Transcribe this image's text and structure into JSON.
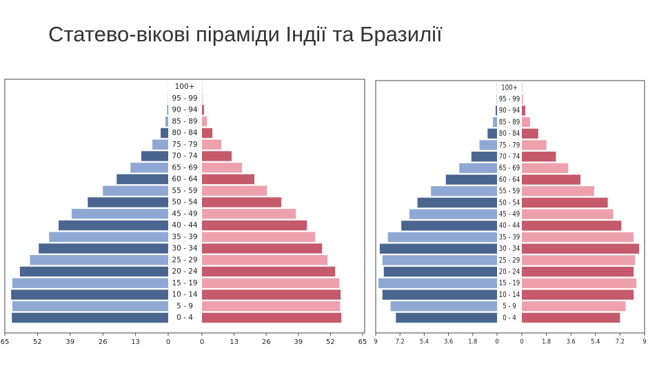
{
  "title": "Статево-вікові піраміди Індії та Бразилії",
  "chart_data": [
    {
      "type": "pyramid",
      "categories": [
        "0 - 4",
        "5 - 9",
        "10 - 14",
        "15 - 19",
        "20 - 24",
        "25 - 29",
        "30 - 34",
        "35 - 39",
        "40 - 44",
        "45 - 49",
        "50 - 54",
        "55 - 59",
        "60 - 64",
        "65 - 69",
        "70 - 74",
        "75 - 79",
        "80 - 84",
        "85 - 89",
        "90 - 94",
        "95 - 99",
        "100+"
      ],
      "series": [
        {
          "colors": [
            "#4a6590",
            "#8fa8d3"
          ],
          "values": [
            62.2,
            62,
            62.5,
            62,
            59,
            55,
            51.5,
            47.4,
            43.6,
            38.4,
            32,
            26,
            20.5,
            15,
            10.7,
            6.3,
            3,
            1.1,
            0.3,
            0.1,
            0.02
          ]
        },
        {
          "colors": [
            "#c45a6a",
            "#eda1ad"
          ],
          "values": [
            56.4,
            55.9,
            56.1,
            55.6,
            53.9,
            50.8,
            48.6,
            45.8,
            42.5,
            38,
            32.1,
            26.3,
            21.2,
            16.2,
            12,
            7.8,
            4.2,
            2,
            0.8,
            0.2,
            0.05
          ]
        }
      ],
      "xlim": [
        0,
        65
      ],
      "xticks": [
        0,
        13,
        26,
        39,
        52,
        65
      ]
    },
    {
      "type": "pyramid",
      "categories": [
        "0 - 4",
        "5 - 9",
        "10 - 14",
        "15 - 19",
        "20 - 24",
        "25 - 29",
        "30 - 34",
        "35 - 39",
        "40 - 44",
        "45 - 49",
        "50 - 54",
        "55 - 59",
        "60 - 64",
        "65 - 69",
        "70 - 74",
        "75 - 79",
        "80 - 84",
        "85 - 89",
        "90 - 94",
        "95 - 99",
        "100+"
      ],
      "series": [
        {
          "colors": [
            "#4a6590",
            "#8fa8d3"
          ],
          "values": [
            7.5,
            7.9,
            8.5,
            8.8,
            8.4,
            8.5,
            8.7,
            8.1,
            7.1,
            6.5,
            5.9,
            4.9,
            3.8,
            2.8,
            1.9,
            1.3,
            0.7,
            0.3,
            0.1,
            0.03,
            0.01
          ]
        },
        {
          "colors": [
            "#c45a6a",
            "#eda1ad"
          ],
          "values": [
            7.2,
            7.6,
            8.2,
            8.4,
            8.2,
            8.3,
            8.6,
            8.2,
            7.3,
            6.7,
            6.3,
            5.3,
            4.3,
            3.4,
            2.5,
            1.8,
            1.2,
            0.6,
            0.25,
            0.08,
            0.02
          ]
        }
      ],
      "xlim": [
        0,
        9
      ],
      "xticks": [
        0,
        1.8,
        3.6,
        5.4,
        7.2,
        9
      ]
    }
  ]
}
